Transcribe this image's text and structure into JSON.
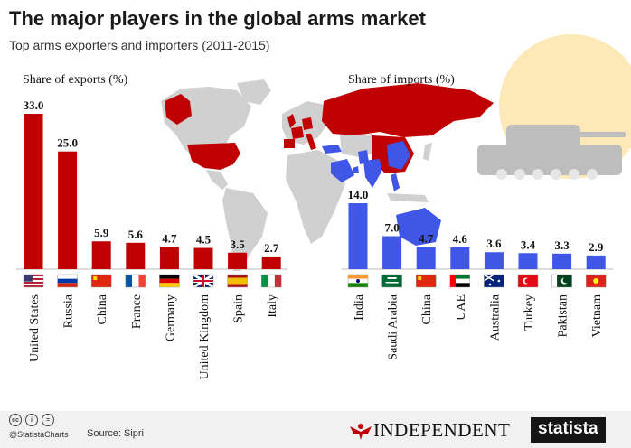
{
  "title": "The major players in the global arms market",
  "subtitle": "Top arms exporters and importers (2011-2015)",
  "chart_data": [
    {
      "type": "bar",
      "title": "Share of exports (%)",
      "categories": [
        "United States",
        "Russia",
        "China",
        "France",
        "Germany",
        "United Kingdom",
        "Spain",
        "Italy"
      ],
      "values": [
        33.0,
        25.0,
        5.9,
        5.6,
        4.7,
        4.5,
        3.5,
        2.7
      ],
      "value_labels": [
        "33.0",
        "25.0",
        "5.9",
        "5.6",
        "4.7",
        "4.5",
        "3.5",
        "2.7"
      ],
      "color": "#c00000",
      "ylim": [
        0,
        33
      ]
    },
    {
      "type": "bar",
      "title": "Share of imports (%)",
      "categories": [
        "India",
        "Saudi Arabia",
        "China",
        "UAE",
        "Australia",
        "Turkey",
        "Pakistan",
        "Vietnam"
      ],
      "values": [
        14.0,
        7.0,
        4.7,
        4.6,
        3.6,
        3.4,
        3.3,
        2.9
      ],
      "value_labels": [
        "14.0",
        "7.0",
        "4.7",
        "4.6",
        "3.6",
        "3.4",
        "3.3",
        "2.9"
      ],
      "color": "#3f56e6",
      "ylim": [
        0,
        33
      ]
    }
  ],
  "flags": {
    "exports": [
      "us-flag-icon",
      "russia-flag-icon",
      "china-flag-icon",
      "france-flag-icon",
      "germany-flag-icon",
      "uk-flag-icon",
      "spain-flag-icon",
      "italy-flag-icon"
    ],
    "imports": [
      "india-flag-icon",
      "saudi-arabia-flag-icon",
      "china-flag-icon",
      "uae-flag-icon",
      "australia-flag-icon",
      "turkey-flag-icon",
      "pakistan-flag-icon",
      "vietnam-flag-icon"
    ]
  },
  "footer": {
    "handle": "@StatistaCharts",
    "source": "Source: Sipri",
    "independent": "INDEPENDENT",
    "statista": "statista"
  },
  "colors": {
    "exports": "#c00000",
    "imports": "#3f56e6",
    "map_land": "#d0d0d0",
    "tank": "#bdbdbd",
    "sun": "#fde9b7"
  }
}
